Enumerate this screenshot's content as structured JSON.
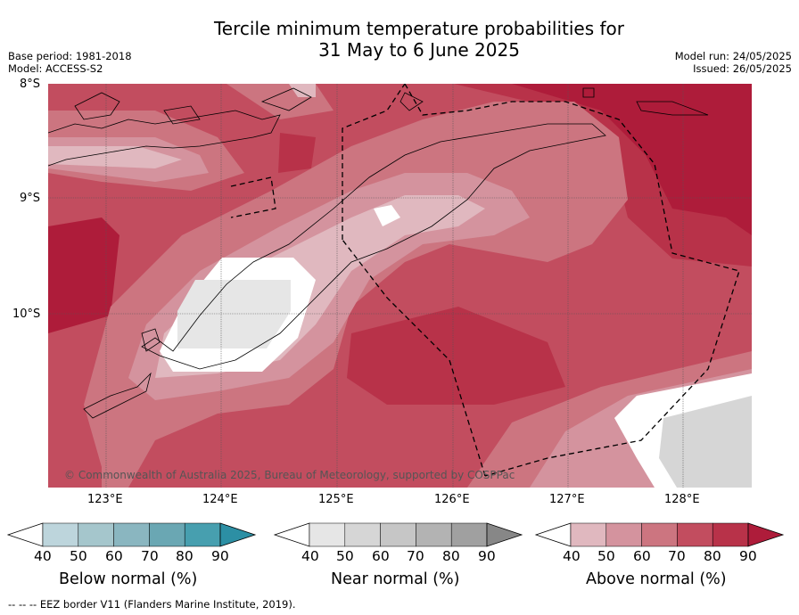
{
  "title_line1": "Tercile minimum temperature probabilities for",
  "title_line2": "31 May to 6 June 2025",
  "base_period": "Base period: 1981-2018",
  "model": "Model: ACCESS-S2",
  "model_run": "Model run: 24/05/2025",
  "issued": "Issued: 26/05/2025",
  "lat_labels": [
    "8°S",
    "9°S",
    "10°S"
  ],
  "lon_labels": [
    "123°E",
    "124°E",
    "125°E",
    "126°E",
    "127°E",
    "128°E"
  ],
  "copyright": "© Commonwealth of Australia 2025, Bureau of Meteorology, supported by COSPPac",
  "legend": [
    {
      "title": "Below normal (%)",
      "ticks": [
        "40",
        "50",
        "60",
        "70",
        "80",
        "90"
      ],
      "colors": [
        "#ffffff",
        "#bdd5dc",
        "#a5c6cc",
        "#8ab6c0",
        "#6aa7b3",
        "#479faf",
        "#2c8fa4"
      ]
    },
    {
      "title": "Near normal (%)",
      "ticks": [
        "40",
        "50",
        "60",
        "70",
        "80",
        "90"
      ],
      "colors": [
        "#ffffff",
        "#e6e6e6",
        "#d6d6d6",
        "#c6c6c6",
        "#b3b3b3",
        "#a0a0a0",
        "#878787"
      ]
    },
    {
      "title": "Above normal (%)",
      "ticks": [
        "40",
        "50",
        "60",
        "70",
        "80",
        "90"
      ],
      "colors": [
        "#ffffff",
        "#e0b8bf",
        "#d4939e",
        "#cc7580",
        "#c24d5f",
        "#b83249",
        "#ae1c3a"
      ]
    }
  ],
  "footer": "--  --  -- EEZ border V11 (Flanders Marine Institute, 2019)."
}
